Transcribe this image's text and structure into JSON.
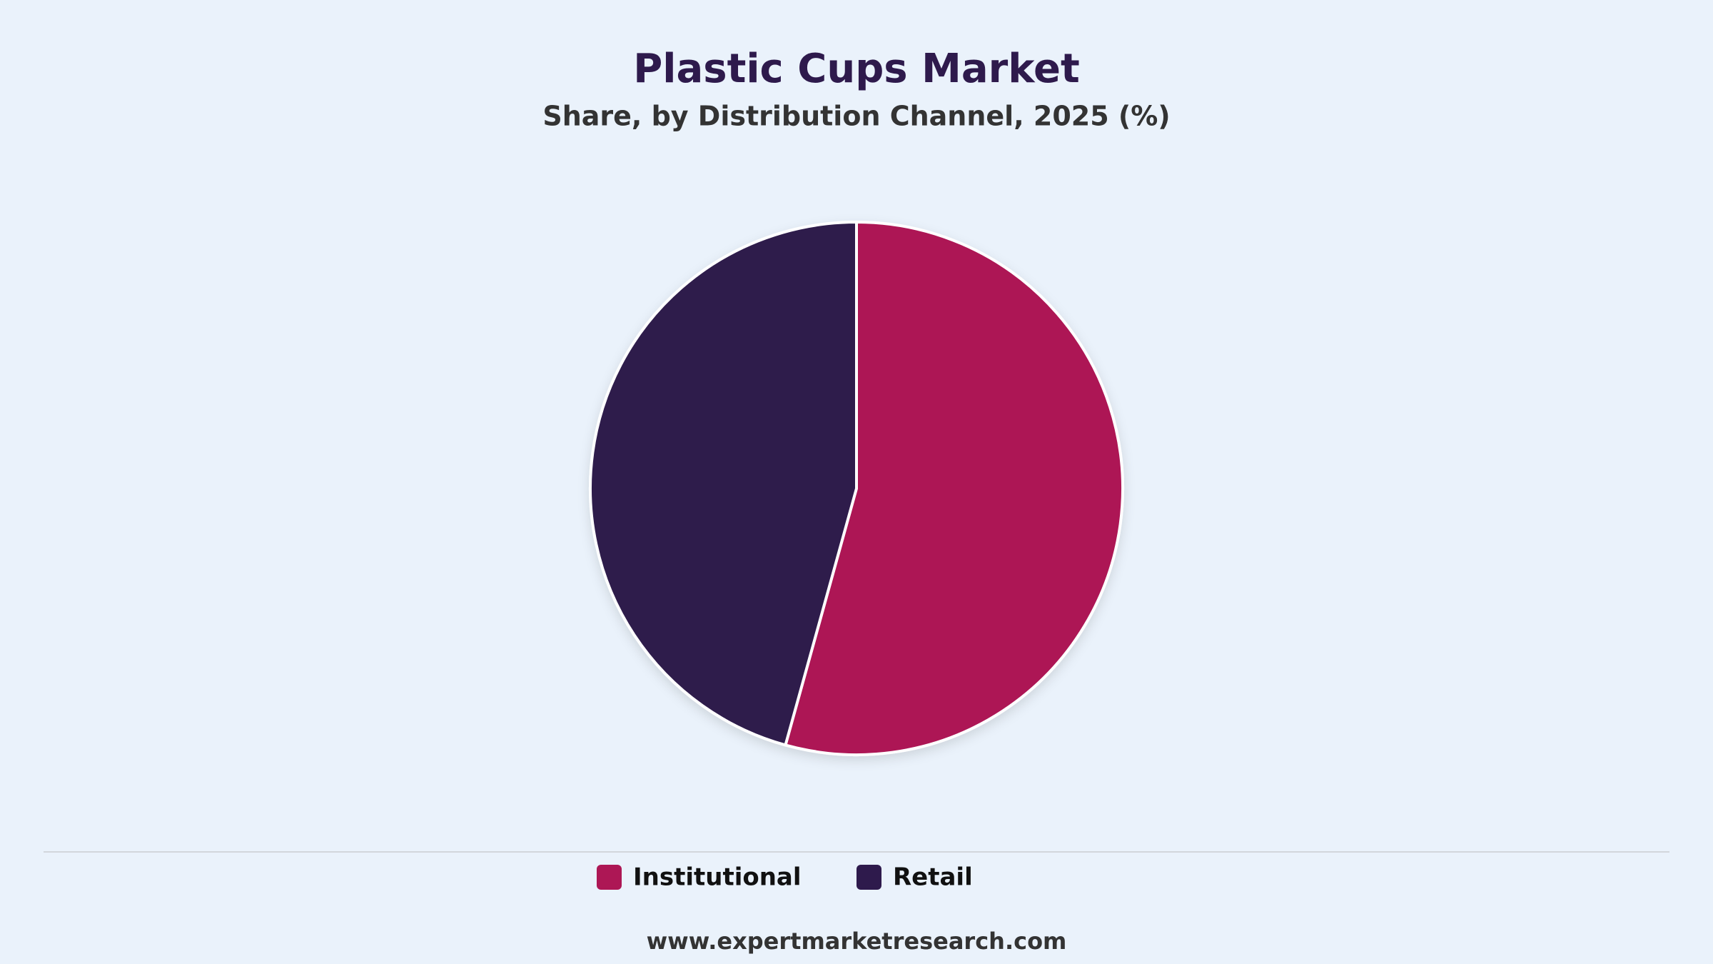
{
  "chart_data": {
    "type": "pie",
    "title": "Plastic Cups Market",
    "subtitle": "Share, by Distribution Channel, 2025 (%)",
    "categories": [
      "Institutional",
      "Retail"
    ],
    "values": [
      54.3,
      45.7
    ],
    "colors": [
      "#ad1755",
      "#2e1a4c"
    ],
    "footer": "www.expertmarketresearch.com"
  }
}
